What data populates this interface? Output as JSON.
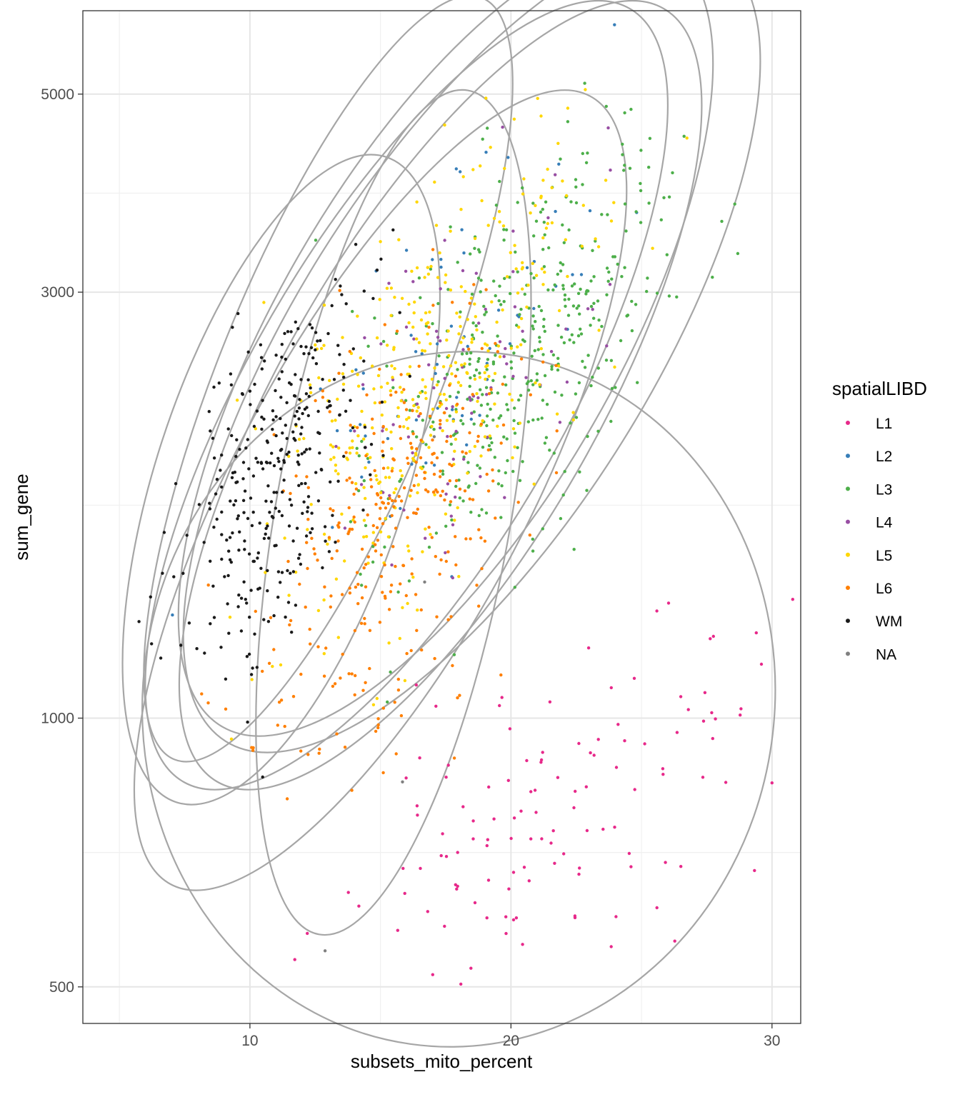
{
  "chart_data": {
    "type": "scatter",
    "title": "",
    "xlabel": "subsets_mito_percent",
    "ylabel": "sum_gene",
    "xlim": [
      3.6,
      31.1
    ],
    "ylim": [
      455,
      6200
    ],
    "y_scale": "log10",
    "x_ticks": [
      10,
      20,
      30
    ],
    "y_ticks": [
      500,
      1000,
      3000,
      5000
    ],
    "grid": true,
    "legend": {
      "title": "spatialLIBD",
      "placement": "right"
    },
    "series": [
      {
        "name": "L1",
        "color": "#E7298A",
        "center": [
          22.5,
          800
        ],
        "sd_x": 4.6,
        "sd_logy": 0.11,
        "n": 130,
        "ellipse": {
          "cx": 18.0,
          "cy": 1050,
          "rx": 12.1,
          "ry_log": 0.39,
          "angle": 8
        }
      },
      {
        "name": "L2",
        "color": "#377EB8",
        "center": [
          18.0,
          2600
        ],
        "sd_x": 2.8,
        "sd_logy": 0.12,
        "n": 70,
        "ellipse": {
          "cx": 17.5,
          "cy": 2650,
          "rx": 6.5,
          "ry_log": 0.5,
          "angle": 30
        }
      },
      {
        "name": "L3",
        "color": "#4DAF4A",
        "center": [
          20.5,
          2600
        ],
        "sd_x": 2.7,
        "sd_logy": 0.12,
        "n": 420,
        "ellipse": {
          "cx": 18.5,
          "cy": 2600,
          "rx": 6.8,
          "ry_log": 0.52,
          "angle": 32
        }
      },
      {
        "name": "L4",
        "color": "#984EA3",
        "center": [
          18.0,
          2400
        ],
        "sd_x": 2.6,
        "sd_logy": 0.12,
        "n": 90,
        "ellipse": {
          "cx": 17.3,
          "cy": 2300,
          "rx": 6.0,
          "ry_log": 0.5,
          "angle": 30
        }
      },
      {
        "name": "L5",
        "color": "#FFD700",
        "center": [
          17.0,
          2400
        ],
        "sd_x": 2.9,
        "sd_logy": 0.13,
        "n": 380,
        "ellipse": {
          "cx": 16.0,
          "cy": 2300,
          "rx": 6.0,
          "ry_log": 0.5,
          "angle": 30
        }
      },
      {
        "name": "L6",
        "color": "#FF7F00",
        "center": [
          15.5,
          1650
        ],
        "sd_x": 2.6,
        "sd_logy": 0.13,
        "n": 320,
        "ellipse": {
          "cx": 15.0,
          "cy": 1800,
          "rx": 5.6,
          "ry_log": 0.5,
          "angle": 28
        }
      },
      {
        "name": "WM",
        "color": "#1A1A1A",
        "center": [
          11.0,
          1900
        ],
        "sd_x": 1.9,
        "sd_logy": 0.11,
        "n": 330,
        "ellipse": {
          "cx": 11.2,
          "cy": 1850,
          "rx": 4.8,
          "ry_log": 0.38,
          "angle": 18
        }
      },
      {
        "name": "NA",
        "color": "#808080",
        "center": [
          14.5,
          1300
        ],
        "sd_x": 3.0,
        "sd_logy": 0.15,
        "n": 4,
        "ellipse": null
      }
    ],
    "extra_ellipses": [
      {
        "cx": 15.5,
        "cy": 1700,
        "rx": 4.5,
        "ry_log": 0.48,
        "angle": 10
      },
      {
        "cx": 13.0,
        "cy": 2400,
        "rx": 4.2,
        "ry_log": 0.46,
        "angle": 22
      }
    ]
  }
}
